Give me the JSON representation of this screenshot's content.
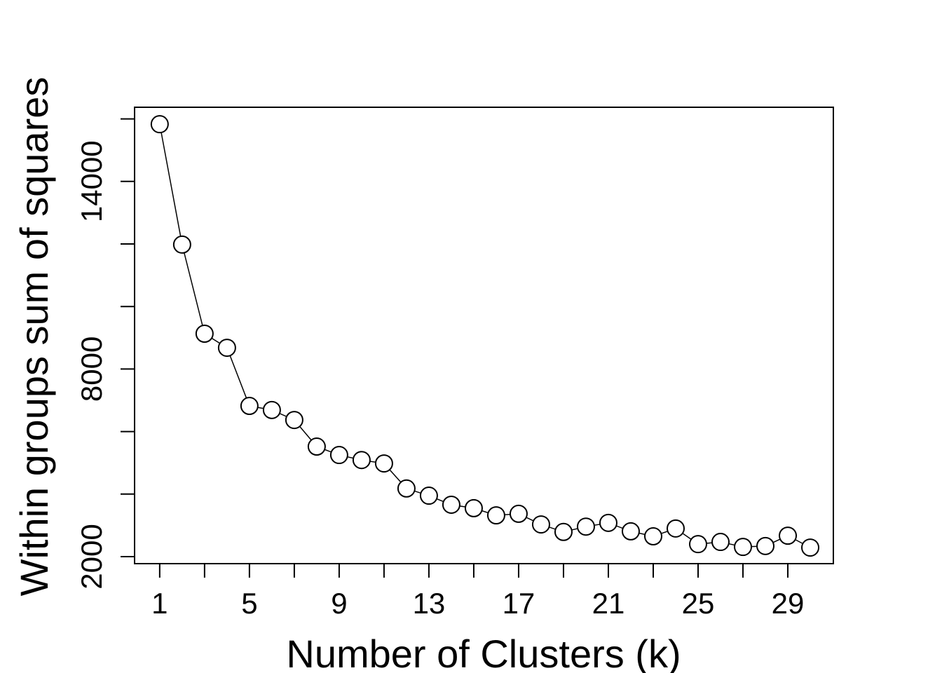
{
  "chart_data": {
    "type": "line",
    "x_label": "Number of Clusters (k)",
    "y_label": "Within groups sum of squares",
    "x": [
      1,
      2,
      3,
      4,
      5,
      6,
      7,
      8,
      9,
      10,
      11,
      12,
      13,
      14,
      15,
      16,
      17,
      18,
      19,
      20,
      21,
      22,
      23,
      24,
      25,
      26,
      27,
      28,
      29,
      30
    ],
    "series": [
      {
        "color": "#000000",
        "values": [
          15830,
          11980,
          9130,
          8680,
          6820,
          6690,
          6370,
          5520,
          5250,
          5090,
          4980,
          4180,
          3950,
          3660,
          3550,
          3320,
          3370,
          3030,
          2790,
          2960,
          3080,
          2810,
          2650,
          2900,
          2400,
          2470,
          2310,
          2340,
          2670,
          2290
        ]
      }
    ],
    "marker": "open-circle",
    "xlim": [
      -0.12,
      31.03
    ],
    "ylim": [
      1776,
      16372
    ],
    "xticks": [
      1,
      5,
      9,
      13,
      17,
      21,
      25,
      29
    ],
    "xticks_unlabeled": [
      3,
      7,
      11,
      15,
      19,
      23,
      27
    ],
    "yticks": [
      2000,
      8000,
      14000
    ],
    "yticks_unlabeled": [
      4000,
      6000,
      10000,
      12000,
      16000
    ],
    "grid": false
  }
}
